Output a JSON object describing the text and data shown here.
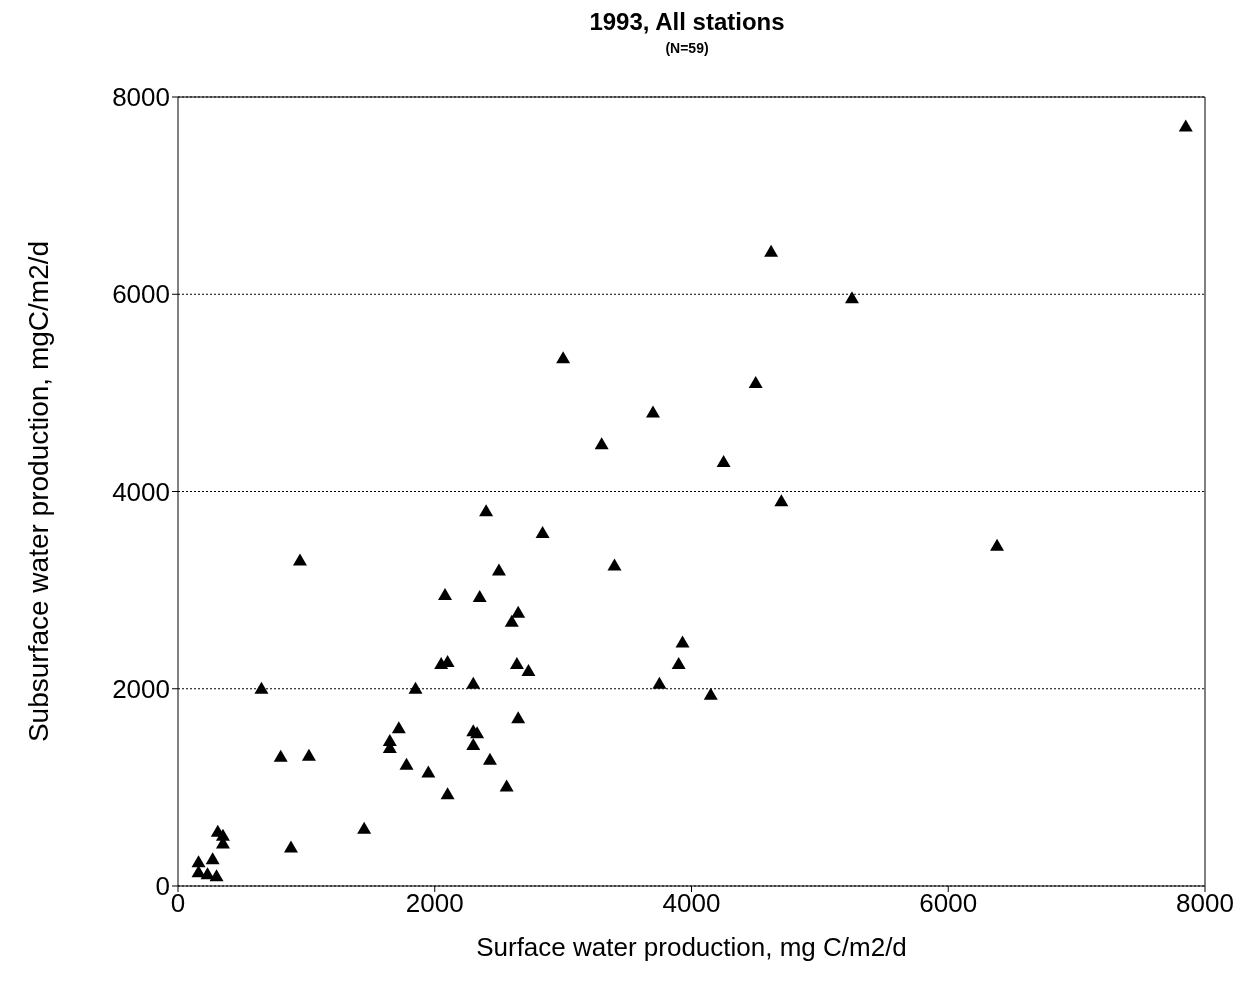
{
  "chart_data": {
    "type": "scatter",
    "title": "1993, All stations",
    "subtitle": "(N=59)",
    "xlabel": "Surface water production, mg C/m2/d",
    "ylabel": "Subsurface water production, mgC/m2/d",
    "xlim": [
      0,
      8000
    ],
    "ylim": [
      0,
      8000
    ],
    "xticks": [
      0,
      2000,
      4000,
      6000,
      8000
    ],
    "yticks": [
      0,
      2000,
      4000,
      6000,
      8000
    ],
    "grid": "y",
    "marker": "triangle",
    "legend": false,
    "series": [
      {
        "color": "#000000",
        "x": [
          7850,
          4620,
          5250,
          3000,
          4500,
          3700,
          3300,
          4250,
          4700,
          6380,
          4150,
          2400,
          2840,
          3400,
          950,
          2500,
          2080,
          2350,
          2650,
          2600,
          3930,
          3900,
          2050,
          2100,
          2640,
          2730,
          650,
          1850,
          2300,
          3750,
          2650,
          1720,
          2300,
          2330,
          1650,
          1650,
          2300,
          800,
          1020,
          2430,
          1780,
          1950,
          2560,
          2100,
          1450,
          880,
          310,
          350,
          350,
          160,
          270,
          160,
          230,
          300
        ],
        "values": [
          7700,
          6430,
          5960,
          5350,
          5100,
          4800,
          4480,
          4300,
          3900,
          3450,
          1940,
          3800,
          3580,
          3250,
          3300,
          3200,
          2950,
          2930,
          2770,
          2680,
          2470,
          2250,
          2250,
          2270,
          2250,
          2180,
          2000,
          2000,
          2050,
          2050,
          1700,
          1600,
          1570,
          1550,
          1470,
          1400,
          1430,
          1310,
          1320,
          1280,
          1230,
          1150,
          1010,
          930,
          580,
          390,
          550,
          510,
          430,
          240,
          270,
          140,
          120,
          100
        ]
      }
    ]
  }
}
